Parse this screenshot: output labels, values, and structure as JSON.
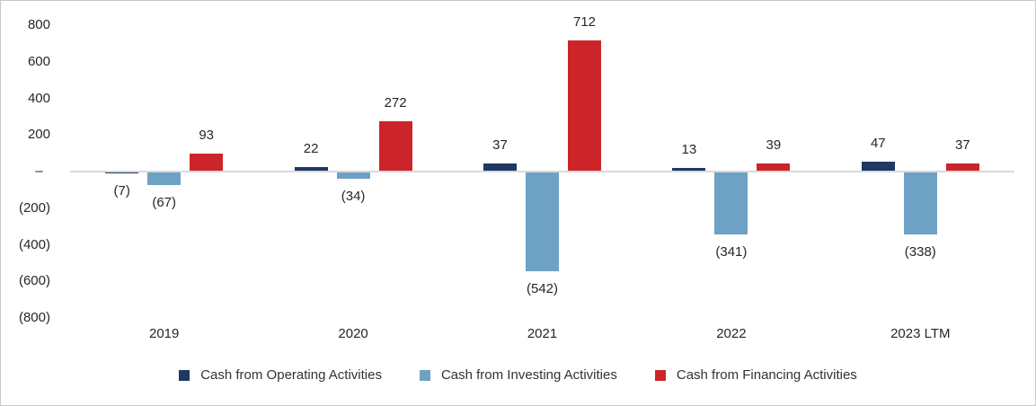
{
  "chart_data": {
    "type": "bar",
    "title": "",
    "xlabel": "",
    "ylabel": "",
    "categories": [
      "2019",
      "2020",
      "2021",
      "2022",
      "2023 LTM"
    ],
    "series": [
      {
        "name": "Cash from Operating Activities",
        "color": "#1F3864",
        "values": [
          -7,
          22,
          37,
          13,
          47
        ],
        "labels": [
          "(7)",
          "22",
          "37",
          "13",
          "47"
        ]
      },
      {
        "name": "Cash from Investing Activities",
        "color": "#6DA2C5",
        "values": [
          -67,
          -34,
          -542,
          -341,
          -338
        ],
        "labels": [
          "(67)",
          "(34)",
          "(542)",
          "(341)",
          "(338)"
        ]
      },
      {
        "name": "Cash from Financing Activities",
        "color": "#CC2529",
        "values": [
          93,
          272,
          712,
          39,
          37
        ],
        "labels": [
          "93",
          "272",
          "712",
          "39",
          "37"
        ]
      }
    ],
    "y_axis": {
      "range": [
        -800,
        800
      ],
      "ticks": [
        {
          "v": 800,
          "label": "800"
        },
        {
          "v": 600,
          "label": "600"
        },
        {
          "v": 400,
          "label": "400"
        },
        {
          "v": 200,
          "label": "200"
        },
        {
          "v": 0,
          "label": "–  "
        },
        {
          "v": -200,
          "label": "(200)"
        },
        {
          "v": -400,
          "label": "(400)"
        },
        {
          "v": -600,
          "label": "(600)"
        },
        {
          "v": -800,
          "label": "(800)"
        }
      ]
    },
    "grid": false,
    "legend_position": "bottom",
    "colors": {
      "axis_line": "#D9D9D9",
      "text": "#262626",
      "frame_border": "#C8C8C8"
    }
  }
}
